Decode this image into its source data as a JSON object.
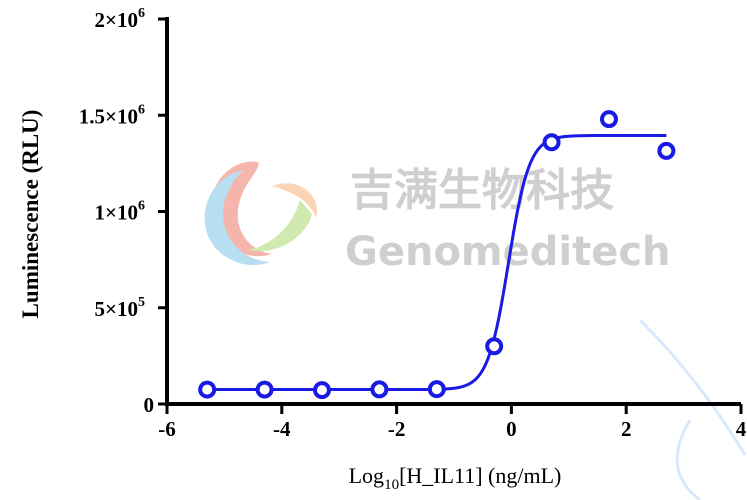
{
  "chart_data": {
    "type": "scatter",
    "title": "",
    "xlabel": {
      "prefix": "Log",
      "sub": "10",
      "rest": "[H_IL11] (ng/mL)"
    },
    "ylabel": "Luminescence (RLU)",
    "xlim": [
      -6,
      4
    ],
    "ylim": [
      0,
      2000000
    ],
    "x_ticks": [
      {
        "value": -6,
        "label": "-6"
      },
      {
        "value": -4,
        "label": "-4"
      },
      {
        "value": -2,
        "label": "-2"
      },
      {
        "value": 0,
        "label": "0"
      },
      {
        "value": 2,
        "label": "2"
      },
      {
        "value": 4,
        "label": "4"
      }
    ],
    "y_ticks": [
      {
        "value": 0,
        "base": "0",
        "exp": ""
      },
      {
        "value": 500000,
        "base": "5×10",
        "exp": "5"
      },
      {
        "value": 1000000,
        "base": "1×10",
        "exp": "6"
      },
      {
        "value": 1500000,
        "base": "1.5×10",
        "exp": "6"
      },
      {
        "value": 2000000,
        "base": "2×10",
        "exp": "6"
      }
    ],
    "series": [
      {
        "color": "#1a1ae6",
        "points": [
          {
            "x": -5.3,
            "y": 75000
          },
          {
            "x": -4.3,
            "y": 75000
          },
          {
            "x": -3.3,
            "y": 72000
          },
          {
            "x": -2.3,
            "y": 76000
          },
          {
            "x": -1.3,
            "y": 77000
          },
          {
            "x": -0.3,
            "y": 300000
          },
          {
            "x": 0.7,
            "y": 1360000
          },
          {
            "x": 1.7,
            "y": 1480000
          },
          {
            "x": 2.7,
            "y": 1315000
          }
        ],
        "fit": {
          "model": "4PL",
          "bottom": 75000,
          "top": 1395000,
          "logEC50": -0.05,
          "hill": 2.4,
          "x_range": [
            -5.3,
            2.7
          ]
        }
      }
    ],
    "grid": false,
    "legend": "none"
  },
  "watermark": {
    "cn": "吉满生物科技",
    "en": "Genomeditech",
    "colors": {
      "red": "#f07a6a",
      "blue": "#7fc4e8",
      "green": "#a8d86e"
    }
  }
}
